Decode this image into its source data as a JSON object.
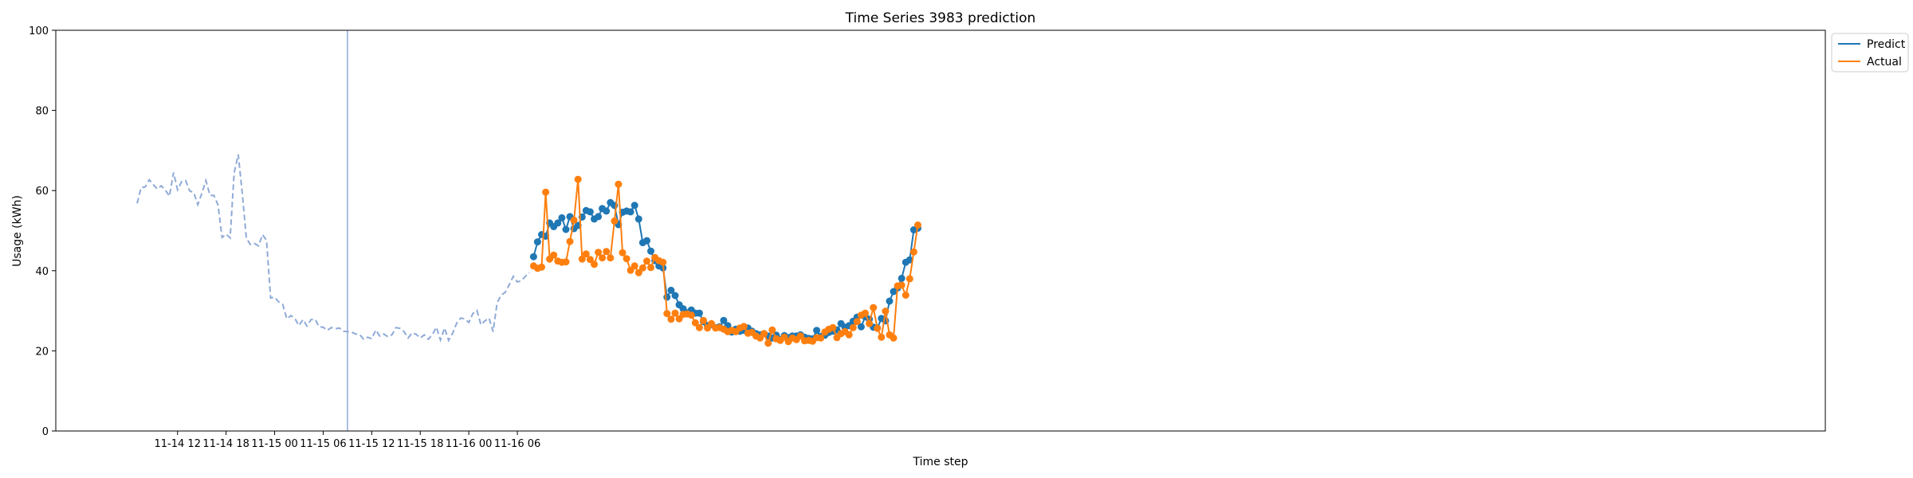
{
  "chart_data": {
    "type": "line",
    "title": "Time Series 3983 prediction",
    "xlabel": "Time step",
    "ylabel": "Usage (kWh)",
    "ylim": [
      0,
      100
    ],
    "yticks": [
      0,
      20,
      40,
      60,
      80,
      100
    ],
    "x_start": "2021-11-14 07:00",
    "x_interval_minutes": 30,
    "xticks": [
      {
        "label": "11-14 12",
        "value": "2021-11-14 12:00"
      },
      {
        "label": "11-14 18",
        "value": "2021-11-14 18:00"
      },
      {
        "label": "11-15 00",
        "value": "2021-11-15 00:00"
      },
      {
        "label": "11-15 06",
        "value": "2021-11-15 06:00"
      },
      {
        "label": "11-15 12",
        "value": "2021-11-15 12:00"
      },
      {
        "label": "11-15 18",
        "value": "2021-11-15 18:00"
      },
      {
        "label": "11-16 00",
        "value": "2021-11-16 00:00"
      },
      {
        "label": "11-16 06",
        "value": "2021-11-16 06:00"
      }
    ],
    "forecast_start": "2021-11-15 09:00",
    "legend_position": "top-right, outside plot",
    "grid": false,
    "colors": {
      "history": "#8faad7",
      "predict": "#1f77b4",
      "actual": "#ff7f0e",
      "vline": "#8faad7"
    },
    "history": [
      56.8,
      60.8,
      60.9,
      62.7,
      61.5,
      60.4,
      61.2,
      60.1,
      58.6,
      64.5,
      60.2,
      62.2,
      62.5,
      59.9,
      59.5,
      56.5,
      59.3,
      62.5,
      58.8,
      58.8,
      56.4,
      48.3,
      49.1,
      48.2,
      64.5,
      69.0,
      59.2,
      48.2,
      46.5,
      46.8,
      46.2,
      49.0,
      47.6,
      33.2,
      33.4,
      32.2,
      31.6,
      28.0,
      28.8,
      28.1,
      26.3,
      27.8,
      26.2,
      27.8,
      27.9,
      26.0,
      25.9,
      25.1,
      25.8,
      25.5,
      25.7,
      24.9,
      24.8,
      24.7,
      24.2,
      24.1,
      22.9,
      23.4,
      23.0,
      25.2,
      23.7,
      24.2,
      23.5,
      24.0,
      25.8,
      25.6,
      24.8,
      23.2,
      24.5,
      24.1,
      23.2,
      24.0,
      22.9,
      24.1,
      25.9,
      22.7,
      25.7,
      22.6,
      24.4,
      26.9,
      28.2,
      28.0,
      27.1,
      29.3,
      30.1,
      26.5,
      27.5,
      28.2,
      24.8,
      32.0,
      33.9,
      34.6,
      36.5,
      38.6,
      37.2,
      37.5,
      38.6,
      39.5
    ],
    "series": [
      {
        "name": "Predict",
        "values": [
          43.5,
          47.2,
          49.0,
          48.6,
          51.9,
          51.0,
          51.9,
          53.2,
          50.3,
          53.5,
          50.5,
          51.3,
          53.4,
          55.0,
          54.7,
          52.9,
          53.5,
          55.5,
          54.9,
          57.0,
          56.3,
          51.5,
          54.6,
          54.9,
          54.7,
          56.3,
          52.9,
          47.0,
          47.5,
          44.9,
          42.5,
          41.2,
          40.7,
          33.4,
          35.1,
          33.8,
          31.5,
          30.5,
          29.5,
          30.2,
          29.4,
          29.4,
          27.3,
          26.3,
          26.6,
          25.8,
          26.0,
          27.6,
          26.3,
          24.7,
          25.4,
          24.9,
          25.1,
          25.7,
          24.9,
          24.3,
          24.0,
          24.3,
          23.7,
          23.2,
          23.9,
          22.8,
          23.8,
          23.3,
          23.7,
          23.7,
          24.0,
          23.4,
          23.1,
          23.0,
          25.1,
          23.6,
          23.9,
          24.6,
          24.9,
          25.2,
          26.8,
          25.9,
          26.3,
          27.4,
          28.4,
          26.0,
          28.5,
          27.9,
          25.9,
          25.7,
          28.1,
          27.5,
          32.4,
          34.8,
          35.7,
          38.1,
          42.1,
          42.7,
          50.2,
          50.6
        ]
      },
      {
        "name": "Actual",
        "values": [
          41.2,
          40.6,
          40.9,
          59.6,
          42.9,
          43.9,
          42.4,
          42.1,
          42.2,
          47.3,
          52.6,
          62.8,
          42.9,
          44.2,
          42.8,
          41.6,
          44.6,
          43.2,
          44.8,
          43.2,
          52.4,
          61.6,
          44.5,
          43.0,
          40.1,
          41.2,
          39.5,
          40.7,
          42.4,
          40.8,
          43.3,
          42.5,
          42.1,
          29.3,
          27.9,
          29.4,
          28.0,
          29.1,
          29.2,
          28.9,
          27.0,
          25.8,
          27.6,
          25.7,
          26.8,
          25.7,
          25.8,
          25.4,
          24.8,
          25.1,
          24.8,
          25.7,
          26.1,
          24.4,
          24.6,
          23.7,
          23.2,
          24.3,
          21.9,
          25.2,
          23.0,
          22.6,
          23.4,
          22.3,
          23.2,
          22.8,
          23.7,
          22.5,
          22.6,
          22.4,
          23.3,
          23.2,
          24.7,
          25.4,
          25.8,
          23.3,
          24.3,
          24.8,
          24.0,
          25.8,
          27.3,
          28.9,
          29.4,
          26.8,
          30.8,
          25.6,
          23.4,
          29.9,
          24.0,
          23.2,
          36.2,
          36.4,
          33.9,
          38.0,
          44.7,
          51.4
        ]
      }
    ]
  }
}
